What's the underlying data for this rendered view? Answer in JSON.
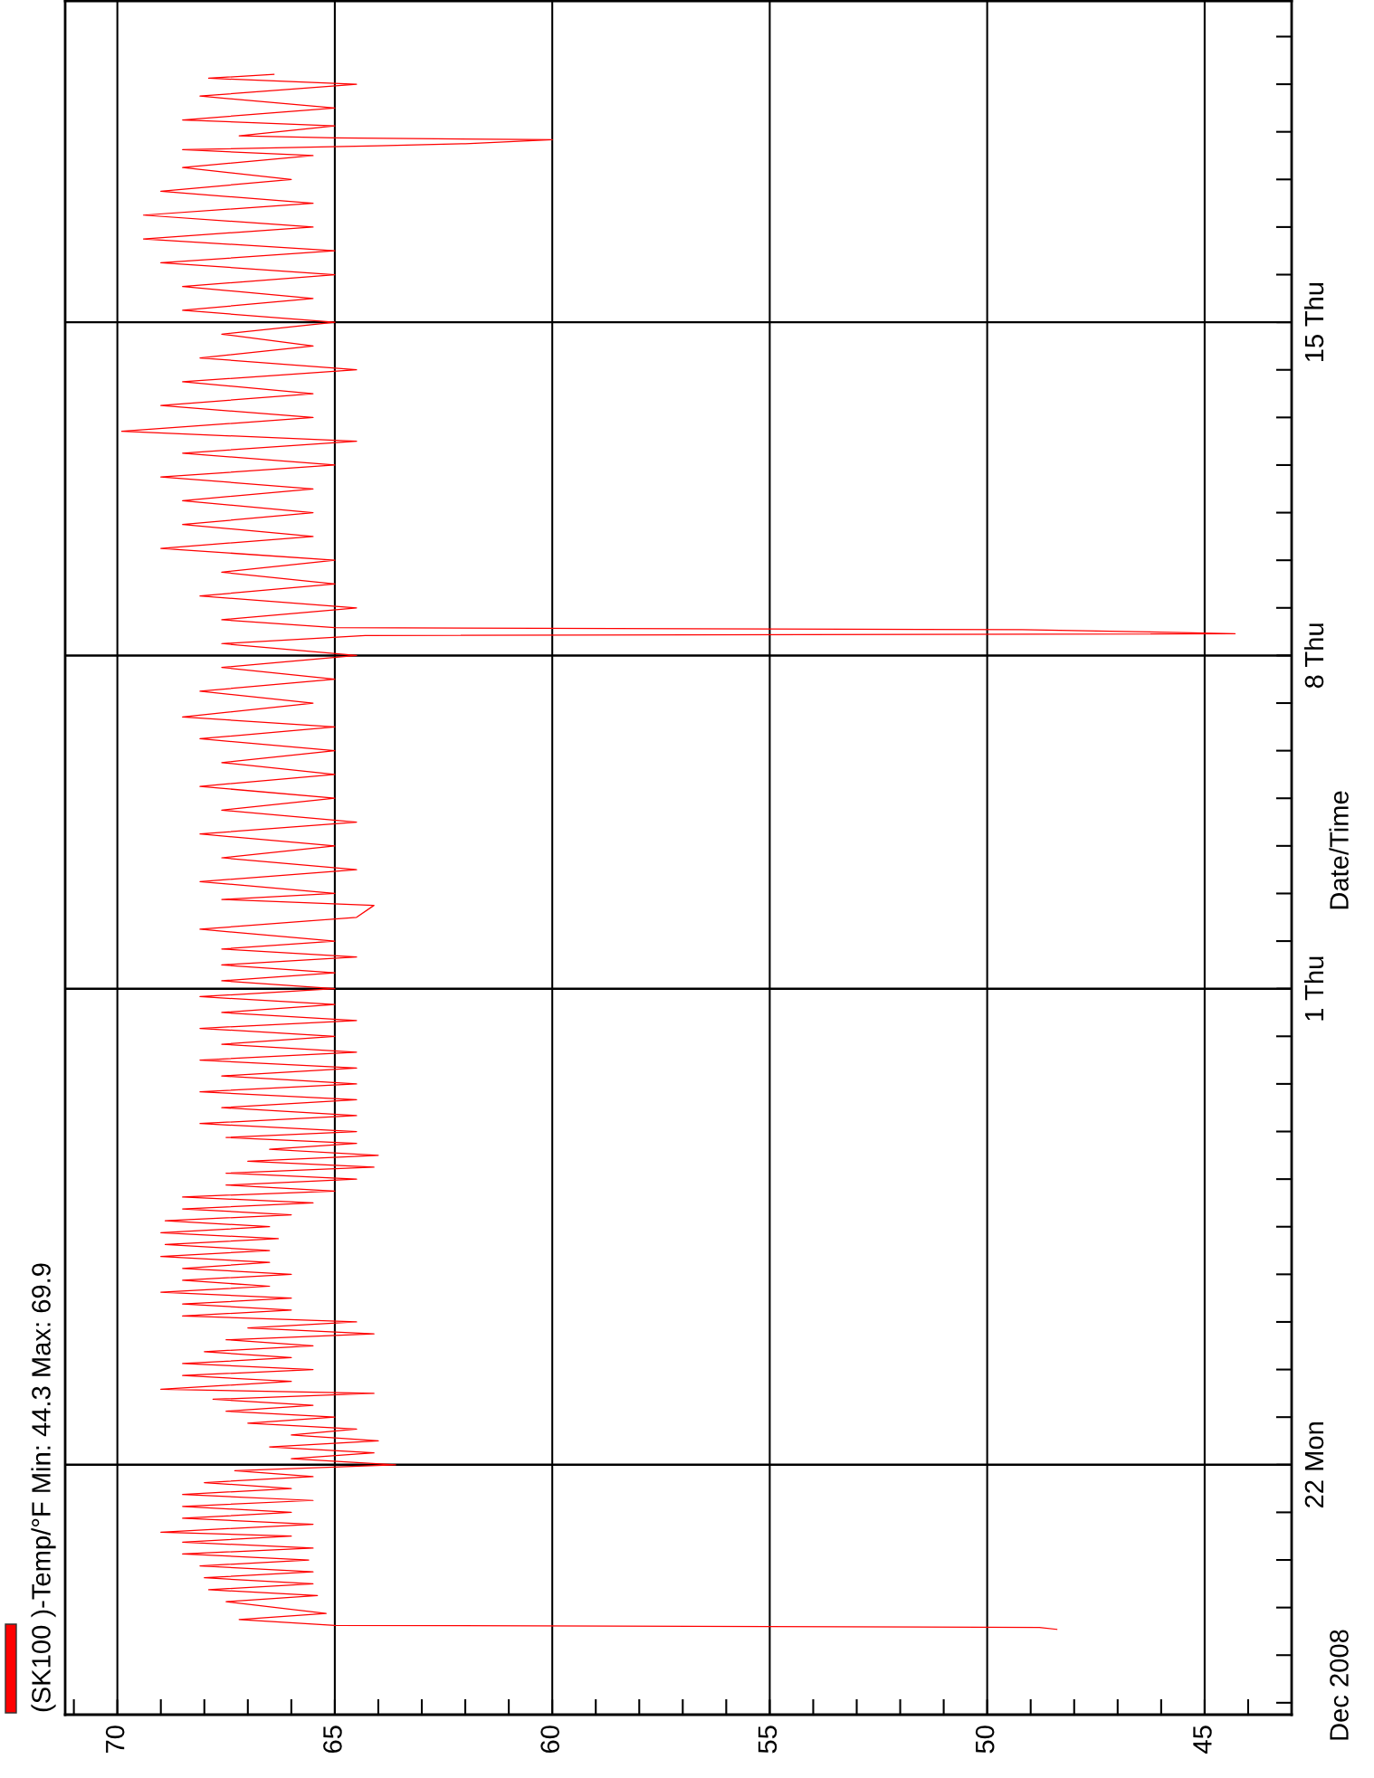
{
  "chart_data": {
    "type": "line",
    "ylabel": "Date/Time",
    "orientation": "horizontal",
    "annotations": [
      "Dec 2008"
    ],
    "legend": "bottom left",
    "grid": true,
    "line_style": "solid",
    "ylim": [
      "2008-12-16T18:00",
      "2009-01-21T18:00"
    ],
    "xlim": [
      71.2,
      43.0
    ],
    "xticks": [
      {
        "value": 44,
        "label": null
      },
      45,
      {
        "value": 46,
        "label": null
      },
      {
        "value": 47,
        "label": null
      },
      {
        "value": 48,
        "label": null
      },
      {
        "value": 49,
        "label": null
      },
      50,
      {
        "value": 51,
        "label": null
      },
      {
        "value": 52,
        "label": null
      },
      {
        "value": 53,
        "label": null
      },
      {
        "value": 54,
        "label": null
      },
      55,
      {
        "value": 56,
        "label": null
      },
      {
        "value": 57,
        "label": null
      },
      {
        "value": 58,
        "label": null
      },
      {
        "value": 59,
        "label": null
      },
      60,
      {
        "value": 61,
        "label": null
      },
      {
        "value": 62,
        "label": null
      },
      {
        "value": 63,
        "label": null
      },
      {
        "value": 64,
        "label": null
      },
      65,
      {
        "value": 66,
        "label": null
      },
      {
        "value": 67,
        "label": null
      },
      {
        "value": 68,
        "label": null
      },
      {
        "value": 69,
        "label": null
      },
      70,
      {
        "value": 71,
        "label": null
      }
    ],
    "yticks": [
      {
        "value": "2008-12-17",
        "label": null
      },
      {
        "value": "2008-12-18",
        "label": null
      },
      {
        "value": "2008-12-19",
        "label": null
      },
      {
        "value": "2008-12-20",
        "label": null
      },
      {
        "value": "2008-12-21",
        "label": null
      },
      {
        "value": "2008-12-22",
        "label": "22 Mon"
      },
      {
        "value": "2008-12-23",
        "label": null
      },
      {
        "value": "2008-12-24",
        "label": null
      },
      {
        "value": "2008-12-25",
        "label": null
      },
      {
        "value": "2008-12-26",
        "label": null
      },
      {
        "value": "2008-12-27",
        "label": null
      },
      {
        "value": "2008-12-28",
        "label": null
      },
      {
        "value": "2008-12-29",
        "label": null
      },
      {
        "value": "2008-12-30",
        "label": null
      },
      {
        "value": "2008-12-31",
        "label": null
      },
      {
        "value": "2009-01-01",
        "label": "1 Thu"
      },
      {
        "value": "2009-01-02",
        "label": null
      },
      {
        "value": "2009-01-03",
        "label": null
      },
      {
        "value": "2009-01-04",
        "label": null
      },
      {
        "value": "2009-01-05",
        "label": null
      },
      {
        "value": "2009-01-06",
        "label": null
      },
      {
        "value": "2009-01-07",
        "label": null
      },
      {
        "value": "2009-01-08",
        "label": "8 Thu"
      },
      {
        "value": "2009-01-09",
        "label": null
      },
      {
        "value": "2009-01-10",
        "label": null
      },
      {
        "value": "2009-01-11",
        "label": null
      },
      {
        "value": "2009-01-12",
        "label": null
      },
      {
        "value": "2009-01-13",
        "label": null
      },
      {
        "value": "2009-01-14",
        "label": null
      },
      {
        "value": "2009-01-15",
        "label": "15 Thu"
      },
      {
        "value": "2009-01-16",
        "label": null
      },
      {
        "value": "2009-01-17",
        "label": null
      },
      {
        "value": "2009-01-18",
        "label": null
      },
      {
        "value": "2009-01-19",
        "label": null
      },
      {
        "value": "2009-01-20",
        "label": null
      },
      {
        "value": "2009-01-21",
        "label": null
      }
    ],
    "series": [
      {
        "name": "(SK100 )-Temp/°F Min: 44.3 Max: 69.9",
        "color": "#ff0000",
        "x": [
          "2008-12-18T13:00",
          "2008-12-18T14:00",
          "2008-12-18T15:00",
          "2008-12-18T18:00",
          "2008-12-18T21:00",
          "2008-12-19T03:00",
          "2008-12-19T06:00",
          "2008-12-19T09:00",
          "2008-12-19T12:00",
          "2008-12-19T15:00",
          "2008-12-19T18:00",
          "2008-12-19T21:00",
          "2008-12-20T00:00",
          "2008-12-20T03:00",
          "2008-12-20T06:00",
          "2008-12-20T09:00",
          "2008-12-20T12:00",
          "2008-12-20T14:00",
          "2008-12-20T18:00",
          "2008-12-20T21:00",
          "2008-12-21T00:00",
          "2008-12-21T03:00",
          "2008-12-21T06:00",
          "2008-12-21T09:00",
          "2008-12-21T12:00",
          "2008-12-21T15:00",
          "2008-12-21T18:00",
          "2008-12-21T21:00",
          "2008-12-22T00:00",
          "2008-12-22T03:00",
          "2008-12-22T06:00",
          "2008-12-22T09:00",
          "2008-12-22T12:00",
          "2008-12-22T15:00",
          "2008-12-22T18:00",
          "2008-12-22T21:00",
          "2008-12-23T00:00",
          "2008-12-23T03:00",
          "2008-12-23T06:00",
          "2008-12-23T09:00",
          "2008-12-23T12:00",
          "2008-12-23T14:00",
          "2008-12-23T18:00",
          "2008-12-23T21:00",
          "2008-12-24T00:00",
          "2008-12-24T03:00",
          "2008-12-24T06:00",
          "2008-12-24T09:00",
          "2008-12-24T12:00",
          "2008-12-24T15:00",
          "2008-12-24T18:00",
          "2008-12-24T21:00",
          "2008-12-25T00:00",
          "2008-12-25T03:00",
          "2008-12-25T06:00",
          "2008-12-25T09:00",
          "2008-12-25T12:00",
          "2008-12-25T15:00",
          "2008-12-25T18:00",
          "2008-12-25T21:00",
          "2008-12-26T00:00",
          "2008-12-26T03:00",
          "2008-12-26T06:00",
          "2008-12-26T09:00",
          "2008-12-26T12:00",
          "2008-12-26T15:00",
          "2008-12-26T18:00",
          "2008-12-26T21:00",
          "2008-12-27T00:00",
          "2008-12-27T03:00",
          "2008-12-27T06:00",
          "2008-12-27T09:00",
          "2008-12-27T12:00",
          "2008-12-27T15:00",
          "2008-12-27T18:00",
          "2008-12-27T21:00",
          "2008-12-28T00:00",
          "2008-12-28T03:00",
          "2008-12-28T06:00",
          "2008-12-28T09:00",
          "2008-12-28T12:00",
          "2008-12-28T15:00",
          "2008-12-28T18:00",
          "2008-12-28T21:00",
          "2008-12-29T00:00",
          "2008-12-29T04:00",
          "2008-12-29T08:00",
          "2008-12-29T12:00",
          "2008-12-29T16:00",
          "2008-12-29T20:00",
          "2008-12-30T00:00",
          "2008-12-30T04:00",
          "2008-12-30T08:00",
          "2008-12-30T12:00",
          "2008-12-30T16:00",
          "2008-12-30T20:00",
          "2008-12-31T00:00",
          "2008-12-31T04:00",
          "2008-12-31T08:00",
          "2008-12-31T12:00",
          "2008-12-31T16:00",
          "2008-12-31T20:00",
          "2009-01-01T00:00",
          "2009-01-01T04:00",
          "2009-01-01T08:00",
          "2009-01-01T12:00",
          "2009-01-01T16:00",
          "2009-01-01T20:00",
          "2009-01-02T00:00",
          "2009-01-02T06:00",
          "2009-01-02T12:00",
          "2009-01-02T18:00",
          "2009-01-02T21:00",
          "2009-01-03T00:00",
          "2009-01-03T06:00",
          "2009-01-03T12:00",
          "2009-01-03T18:00",
          "2009-01-04T00:00",
          "2009-01-04T06:00",
          "2009-01-04T12:00",
          "2009-01-04T18:00",
          "2009-01-05T00:00",
          "2009-01-05T06:00",
          "2009-01-05T12:00",
          "2009-01-05T18:00",
          "2009-01-06T00:00",
          "2009-01-06T06:00",
          "2009-01-06T12:00",
          "2009-01-06T17:00",
          "2009-01-07T00:00",
          "2009-01-07T06:00",
          "2009-01-07T12:00",
          "2009-01-07T18:00",
          "2009-01-08T00:00",
          "2009-01-08T06:00",
          "2009-01-08T10:00",
          "2009-01-08T11:00",
          "2009-01-08T12:00",
          "2009-01-08T13:00",
          "2009-01-08T14:00",
          "2009-01-08T18:00",
          "2009-01-09T00:00",
          "2009-01-09T06:00",
          "2009-01-09T12:00",
          "2009-01-09T18:00",
          "2009-01-10T00:00",
          "2009-01-10T06:00",
          "2009-01-10T12:00",
          "2009-01-10T18:00",
          "2009-01-11T00:00",
          "2009-01-11T06:00",
          "2009-01-11T12:00",
          "2009-01-11T18:00",
          "2009-01-12T00:00",
          "2009-01-12T06:00",
          "2009-01-12T12:00",
          "2009-01-12T17:00",
          "2009-01-13T00:00",
          "2009-01-13T06:00",
          "2009-01-13T12:00",
          "2009-01-13T18:00",
          "2009-01-14T00:00",
          "2009-01-14T06:00",
          "2009-01-14T12:00",
          "2009-01-14T18:00",
          "2009-01-15T00:00",
          "2009-01-15T06:00",
          "2009-01-15T12:00",
          "2009-01-15T18:00",
          "2009-01-16T00:00",
          "2009-01-16T06:00",
          "2009-01-16T12:00",
          "2009-01-16T18:00",
          "2009-01-17T00:00",
          "2009-01-17T06:00",
          "2009-01-17T12:00",
          "2009-01-17T18:00",
          "2009-01-18T00:00",
          "2009-01-18T06:00",
          "2009-01-18T12:00",
          "2009-01-18T15:00",
          "2009-01-18T17:00",
          "2009-01-18T18:00",
          "2009-01-18T19:00",
          "2009-01-18T20:00",
          "2009-01-18T21:00",
          "2009-01-18T22:00",
          "2009-01-19T03:00",
          "2009-01-19T06:00",
          "2009-01-19T12:00",
          "2009-01-19T18:00",
          "2009-01-20T00:00",
          "2009-01-20T03:00",
          "2009-01-20T05:00"
        ],
        "values": [
          48.4,
          48.8,
          65.0,
          67.2,
          65.2,
          67.5,
          65.4,
          67.9,
          65.5,
          68.0,
          65.5,
          68.1,
          65.6,
          68.5,
          65.5,
          68.5,
          66.0,
          69.0,
          65.5,
          68.5,
          66.0,
          68.5,
          65.5,
          68.5,
          66.0,
          68.0,
          65.5,
          67.3,
          63.6,
          66.0,
          64.1,
          66.5,
          64.0,
          66.0,
          64.5,
          67.0,
          65.0,
          67.5,
          65.5,
          67.8,
          64.1,
          69.0,
          66.0,
          68.5,
          65.5,
          68.5,
          66.0,
          68.0,
          65.5,
          67.5,
          64.1,
          67.0,
          64.5,
          68.5,
          66.0,
          68.5,
          66.0,
          69.0,
          66.5,
          68.5,
          66.0,
          68.5,
          66.5,
          69.0,
          66.5,
          68.9,
          66.3,
          69.0,
          66.5,
          68.9,
          66.0,
          68.5,
          65.5,
          68.5,
          65.0,
          67.5,
          64.5,
          67.5,
          64.1,
          67.0,
          64.0,
          66.5,
          64.5,
          67.5,
          64.5,
          68.1,
          64.5,
          67.6,
          64.5,
          68.1,
          64.5,
          67.6,
          64.5,
          68.1,
          64.5,
          67.6,
          65.0,
          68.1,
          64.5,
          67.6,
          65.0,
          68.1,
          65.0,
          67.6,
          65.0,
          67.6,
          64.5,
          67.6,
          65.0,
          68.1,
          64.5,
          64.1,
          67.6,
          65.0,
          68.1,
          64.5,
          67.6,
          65.0,
          68.1,
          64.5,
          67.6,
          65.0,
          68.1,
          65.0,
          67.6,
          65.0,
          68.1,
          65.0,
          68.5,
          65.5,
          68.1,
          65.0,
          67.6,
          64.5,
          67.6,
          64.3,
          44.3,
          46.6,
          49.2,
          65.0,
          67.6,
          64.5,
          68.1,
          65.0,
          67.6,
          65.0,
          69.0,
          65.5,
          68.5,
          65.5,
          68.5,
          65.5,
          69.0,
          65.0,
          68.5,
          64.5,
          69.9,
          65.5,
          69.0,
          65.5,
          68.5,
          64.5,
          68.1,
          65.5,
          67.6,
          65.0,
          68.5,
          65.5,
          68.5,
          65.0,
          69.0,
          65.0,
          69.4,
          65.5,
          69.4,
          65.5,
          69.0,
          66.0,
          68.5,
          65.5,
          68.5,
          64.0,
          62.0,
          61.0,
          60.0,
          65.0,
          67.2,
          65.0,
          68.5,
          65.0,
          68.1,
          64.5,
          67.9,
          66.4
        ]
      }
    ]
  }
}
